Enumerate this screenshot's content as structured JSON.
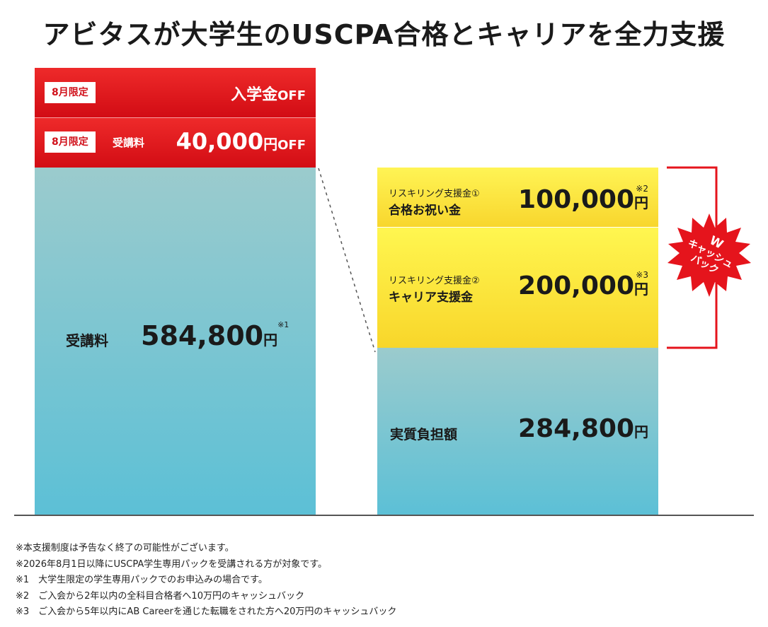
{
  "title": "アビタスが大学生のUSCPA合格とキャリアを全力支援",
  "left_bar": {
    "row1": {
      "tag": "8月限定",
      "text_main": "入学金",
      "text_off": "OFF"
    },
    "row2": {
      "tag": "8月限定",
      "label": "受講料",
      "amount": "40,000",
      "yen": "円",
      "off": "OFF"
    },
    "fee_label": "受講料",
    "fee_amount": "584,800",
    "fee_yen": "円",
    "fee_note": "※1"
  },
  "right_bar": {
    "support1": {
      "sub": "リスキリング支援金①",
      "main": "合格お祝い金",
      "amount": "100,000",
      "yen": "円",
      "note": "※2"
    },
    "support2": {
      "sub": "リスキリング支援金②",
      "main": "キャリア支援金",
      "amount": "200,000",
      "yen": "円",
      "note": "※3"
    },
    "real_label": "実質負担額",
    "real_amount": "284,800",
    "real_yen": "円"
  },
  "badge": {
    "line1": "W",
    "line2": "キャッシュ",
    "line3": "バック"
  },
  "notes": [
    "※本支援制度は予告なく終了の可能性がございます。",
    "※2026年8月1日以降にUSCPA学生専用パックを受講される方が対象です。",
    "※1　大学生限定の学生専用パックでのお申込みの場合です。",
    "※2　ご入会から2年以内の全科目合格者へ10万円のキャッシュバック",
    "※3　ご入会から5年以内にAB Careerを通じた転職をされた方へ20万円のキャッシュバック"
  ],
  "colors": {
    "red": "#d20c14",
    "yellow": "#fff34a",
    "teal": "#5cc0d6"
  }
}
